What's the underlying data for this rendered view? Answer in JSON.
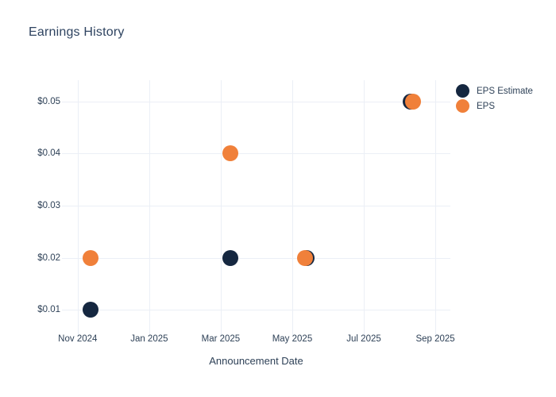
{
  "title": "Earnings History",
  "colors": {
    "background": "#ffffff",
    "text": "#2e4157",
    "title_text": "#2e4360",
    "grid": "#ebeff6",
    "eps_estimate": "#152740",
    "eps": "#f0803a"
  },
  "legend": {
    "items": [
      {
        "label": "EPS Estimate",
        "color": "#152740"
      },
      {
        "label": "EPS",
        "color": "#f0803a"
      }
    ]
  },
  "chart_data": {
    "type": "scatter",
    "title": "Earnings History",
    "xlabel": "Announcement Date",
    "ylabel": "",
    "grid": true,
    "legend_position": "top-right",
    "marker_size": 20,
    "x_unit": "months since Nov 1, 2024",
    "xlim": [
      -0.44,
      10.42
    ],
    "ylim": [
      0.0059,
      0.0541
    ],
    "x_ticks": [
      {
        "label": "Nov 2024",
        "value": 0
      },
      {
        "label": "Jan 2025",
        "value": 2
      },
      {
        "label": "Mar 2025",
        "value": 4
      },
      {
        "label": "May 2025",
        "value": 6
      },
      {
        "label": "Jul 2025",
        "value": 8
      },
      {
        "label": "Sep 2025",
        "value": 10
      }
    ],
    "y_ticks": [
      {
        "label": "$0.01",
        "value": 0.01
      },
      {
        "label": "$0.02",
        "value": 0.02
      },
      {
        "label": "$0.03",
        "value": 0.03
      },
      {
        "label": "$0.04",
        "value": 0.04
      },
      {
        "label": "$0.05",
        "value": 0.05
      }
    ],
    "series": [
      {
        "name": "EPS Estimate",
        "color": "#152740",
        "points": [
          {
            "x": 0.37,
            "y": 0.01
          },
          {
            "x": 4.27,
            "y": 0.02
          },
          {
            "x": 6.41,
            "y": 0.02
          },
          {
            "x": 9.31,
            "y": 0.05
          }
        ]
      },
      {
        "name": "EPS",
        "color": "#f0803a",
        "points": [
          {
            "x": 0.37,
            "y": 0.02
          },
          {
            "x": 4.27,
            "y": 0.04
          },
          {
            "x": 6.36,
            "y": 0.02
          },
          {
            "x": 9.38,
            "y": 0.05
          }
        ]
      }
    ]
  }
}
